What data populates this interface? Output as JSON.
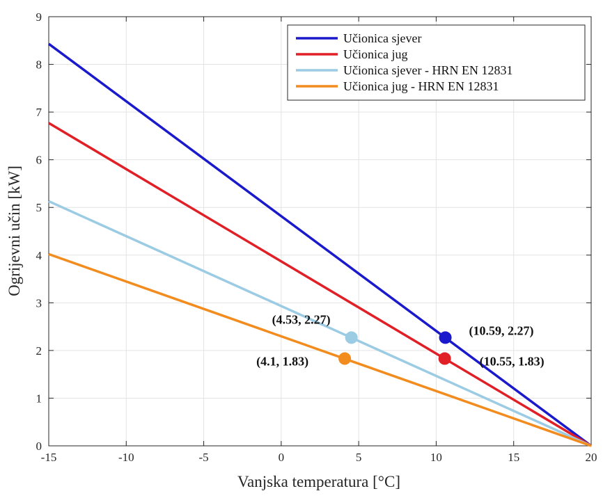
{
  "chart_data": {
    "type": "line",
    "xlabel": "Vanjska temperatura [°C]",
    "ylabel": "Ogrijevni učin [kW]",
    "xlim": [
      -15,
      20
    ],
    "ylim": [
      0,
      9
    ],
    "xticks": [
      -15,
      -10,
      -5,
      0,
      5,
      10,
      15,
      20
    ],
    "yticks": [
      0,
      1,
      2,
      3,
      4,
      5,
      6,
      7,
      8,
      9
    ],
    "grid": true,
    "legend_position": "top-right",
    "series": [
      {
        "name": "Učionica sjever",
        "color": "#1a1acc",
        "x": [
          -15,
          20
        ],
        "y": [
          8.43,
          0
        ]
      },
      {
        "name": "Učionica jug",
        "color": "#e01f26",
        "x": [
          -15,
          20
        ],
        "y": [
          6.77,
          0
        ]
      },
      {
        "name": "Učionica sjever - HRN EN 12831",
        "color": "#9ccbe4",
        "x": [
          -15,
          20
        ],
        "y": [
          5.13,
          0
        ]
      },
      {
        "name": "Učionica jug - HRN EN 12831",
        "color": "#f28c1e",
        "x": [
          -15,
          20
        ],
        "y": [
          4.02,
          0
        ]
      }
    ],
    "points": [
      {
        "x": 10.59,
        "y": 2.27,
        "color": "#1a1acc",
        "label": "(10.59, 2.27)"
      },
      {
        "x": 10.55,
        "y": 1.83,
        "color": "#e01f26",
        "label": "(10.55, 1.83)"
      },
      {
        "x": 4.53,
        "y": 2.27,
        "color": "#9ccbe4",
        "label": "(4.53, 2.27)"
      },
      {
        "x": 4.1,
        "y": 1.83,
        "color": "#f28c1e",
        "label": "(4.1, 1.83)"
      }
    ]
  }
}
